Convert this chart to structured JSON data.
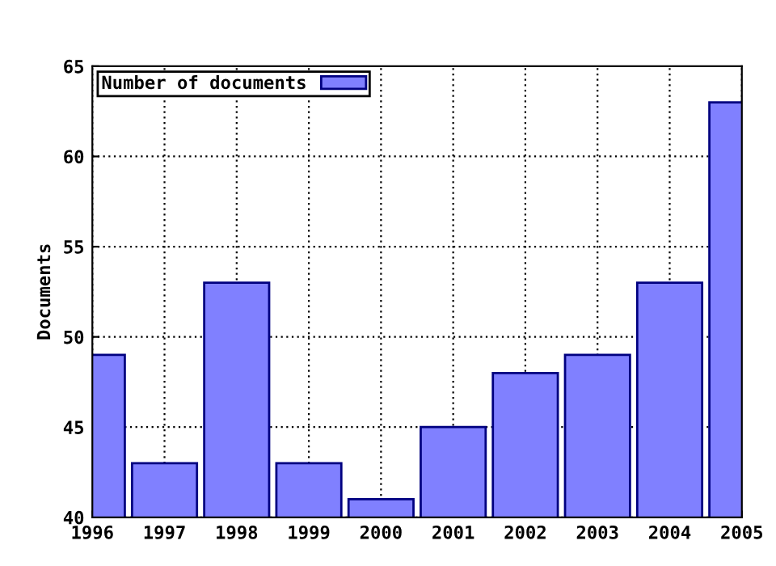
{
  "chart_data": {
    "type": "bar",
    "ylabel": "Documents",
    "x": [
      1996,
      1997,
      1998,
      1999,
      2000,
      2001,
      2002,
      2003,
      2004,
      2005
    ],
    "series": [
      {
        "name": "Number of documents",
        "color": "#8080ff",
        "values": [
          49,
          43,
          53,
          43,
          41,
          45,
          48,
          49,
          53,
          63
        ]
      }
    ],
    "xlim": [
      1996,
      2005
    ],
    "xticks": [
      1996,
      1997,
      1998,
      1999,
      2000,
      2001,
      2002,
      2003,
      2004,
      2005
    ],
    "ylim": [
      40,
      65
    ],
    "yticks": [
      40,
      45,
      50,
      55,
      60,
      65
    ],
    "grid": true,
    "legend": "top left"
  }
}
